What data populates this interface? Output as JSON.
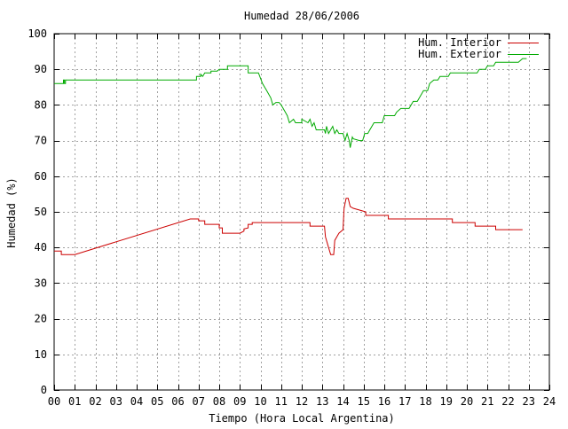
{
  "chart_data": {
    "type": "line",
    "title": "Humedad 28/06/2006",
    "xlabel": "Tiempo (Hora Local Argentina)",
    "ylabel": "Humedad (%)",
    "xlim": [
      0,
      24
    ],
    "ylim": [
      0,
      100
    ],
    "grid": true,
    "legend_position": "top-right",
    "x_ticks": [
      0,
      1,
      2,
      3,
      4,
      5,
      6,
      7,
      8,
      9,
      10,
      11,
      12,
      13,
      14,
      15,
      16,
      17,
      18,
      19,
      20,
      21,
      22,
      23,
      24
    ],
    "x_tick_labels": [
      "00",
      "01",
      "02",
      "03",
      "04",
      "05",
      "06",
      "07",
      "08",
      "09",
      "10",
      "11",
      "12",
      "13",
      "14",
      "15",
      "16",
      "17",
      "18",
      "19",
      "20",
      "21",
      "22",
      "23",
      "24"
    ],
    "y_ticks": [
      0,
      10,
      20,
      30,
      40,
      50,
      60,
      70,
      80,
      90,
      100
    ],
    "y_tick_labels": [
      "0",
      "10",
      "20",
      "30",
      "40",
      "50",
      "60",
      "70",
      "80",
      "90",
      "100"
    ],
    "series": [
      {
        "name": "Hum. Interior",
        "color": "#cc0000",
        "points": [
          [
            0.0,
            39
          ],
          [
            0.35,
            39
          ],
          [
            0.35,
            38
          ],
          [
            1.0,
            38
          ],
          [
            6.6,
            48
          ],
          [
            7.0,
            48
          ],
          [
            7.0,
            47.5
          ],
          [
            7.3,
            47.5
          ],
          [
            7.3,
            46.5
          ],
          [
            8.0,
            46.5
          ],
          [
            8.0,
            45.5
          ],
          [
            8.15,
            45.5
          ],
          [
            8.15,
            44
          ],
          [
            9.0,
            44
          ],
          [
            9.2,
            44.6
          ],
          [
            9.2,
            45.2
          ],
          [
            9.4,
            45.5
          ],
          [
            9.4,
            46.5
          ],
          [
            9.6,
            46.5
          ],
          [
            9.6,
            47
          ],
          [
            12.4,
            47
          ],
          [
            12.4,
            46
          ],
          [
            13.1,
            46
          ],
          [
            13.15,
            43
          ],
          [
            13.3,
            40
          ],
          [
            13.4,
            38
          ],
          [
            13.55,
            38
          ],
          [
            13.6,
            42
          ],
          [
            13.8,
            44
          ],
          [
            14.0,
            45
          ],
          [
            14.05,
            51
          ],
          [
            14.15,
            53.8
          ],
          [
            14.25,
            53.8
          ],
          [
            14.35,
            51.5
          ],
          [
            14.5,
            51
          ],
          [
            14.8,
            50.5
          ],
          [
            15.1,
            50
          ],
          [
            15.1,
            49
          ],
          [
            16.2,
            49
          ],
          [
            16.2,
            48
          ],
          [
            19.3,
            48
          ],
          [
            19.3,
            47
          ],
          [
            20.4,
            47
          ],
          [
            20.4,
            46
          ],
          [
            21.4,
            46
          ],
          [
            21.4,
            45
          ],
          [
            22.7,
            45
          ]
        ]
      },
      {
        "name": "Hum. Exterior",
        "color": "#00aa00",
        "points": [
          [
            0.0,
            86
          ],
          [
            0.45,
            86
          ],
          [
            0.45,
            87
          ],
          [
            0.5,
            87
          ],
          [
            0.5,
            86
          ],
          [
            0.55,
            86
          ],
          [
            0.55,
            87
          ],
          [
            6.9,
            87
          ],
          [
            6.9,
            88
          ],
          [
            7.1,
            88
          ],
          [
            7.1,
            88.6
          ],
          [
            7.2,
            88
          ],
          [
            7.3,
            89
          ],
          [
            7.6,
            89
          ],
          [
            7.6,
            89.5
          ],
          [
            7.9,
            89.5
          ],
          [
            8.0,
            90
          ],
          [
            8.4,
            90
          ],
          [
            8.4,
            91
          ],
          [
            9.4,
            91
          ],
          [
            9.4,
            89
          ],
          [
            9.9,
            89
          ],
          [
            10.1,
            86
          ],
          [
            10.3,
            84
          ],
          [
            10.5,
            82
          ],
          [
            10.6,
            80
          ],
          [
            10.75,
            80.7
          ],
          [
            10.9,
            80.7
          ],
          [
            11.0,
            80
          ],
          [
            11.1,
            79
          ],
          [
            11.2,
            78
          ],
          [
            11.3,
            77
          ],
          [
            11.4,
            75
          ],
          [
            11.6,
            76
          ],
          [
            11.7,
            75
          ],
          [
            12.0,
            75
          ],
          [
            12.0,
            76
          ],
          [
            12.3,
            75
          ],
          [
            12.4,
            76
          ],
          [
            12.5,
            74
          ],
          [
            12.6,
            75
          ],
          [
            12.7,
            73
          ],
          [
            13.1,
            73
          ],
          [
            13.15,
            72
          ],
          [
            13.2,
            74
          ],
          [
            13.3,
            72
          ],
          [
            13.4,
            73
          ],
          [
            13.5,
            74
          ],
          [
            13.6,
            72
          ],
          [
            13.7,
            73
          ],
          [
            13.8,
            72
          ],
          [
            14.0,
            72
          ],
          [
            14.1,
            70
          ],
          [
            14.2,
            72
          ],
          [
            14.3,
            70
          ],
          [
            14.35,
            68
          ],
          [
            14.45,
            71
          ],
          [
            14.5,
            70.5
          ],
          [
            14.8,
            70
          ],
          [
            14.95,
            70
          ],
          [
            15.0,
            71
          ],
          [
            15.05,
            72
          ],
          [
            15.2,
            72
          ],
          [
            15.3,
            73
          ],
          [
            15.5,
            75
          ],
          [
            15.9,
            75
          ],
          [
            16.0,
            77
          ],
          [
            16.5,
            77
          ],
          [
            16.6,
            78
          ],
          [
            16.8,
            79
          ],
          [
            17.2,
            79
          ],
          [
            17.4,
            81
          ],
          [
            17.6,
            81
          ],
          [
            17.7,
            82
          ],
          [
            17.8,
            83
          ],
          [
            17.9,
            84
          ],
          [
            18.1,
            84
          ],
          [
            18.2,
            86
          ],
          [
            18.4,
            87
          ],
          [
            18.6,
            87
          ],
          [
            18.7,
            88
          ],
          [
            19.1,
            88
          ],
          [
            19.2,
            89
          ],
          [
            20.5,
            89
          ],
          [
            20.6,
            90
          ],
          [
            20.9,
            90
          ],
          [
            21.0,
            91
          ],
          [
            21.3,
            91
          ],
          [
            21.4,
            92
          ],
          [
            22.5,
            92
          ],
          [
            22.7,
            93
          ],
          [
            22.9,
            93
          ]
        ]
      }
    ]
  }
}
